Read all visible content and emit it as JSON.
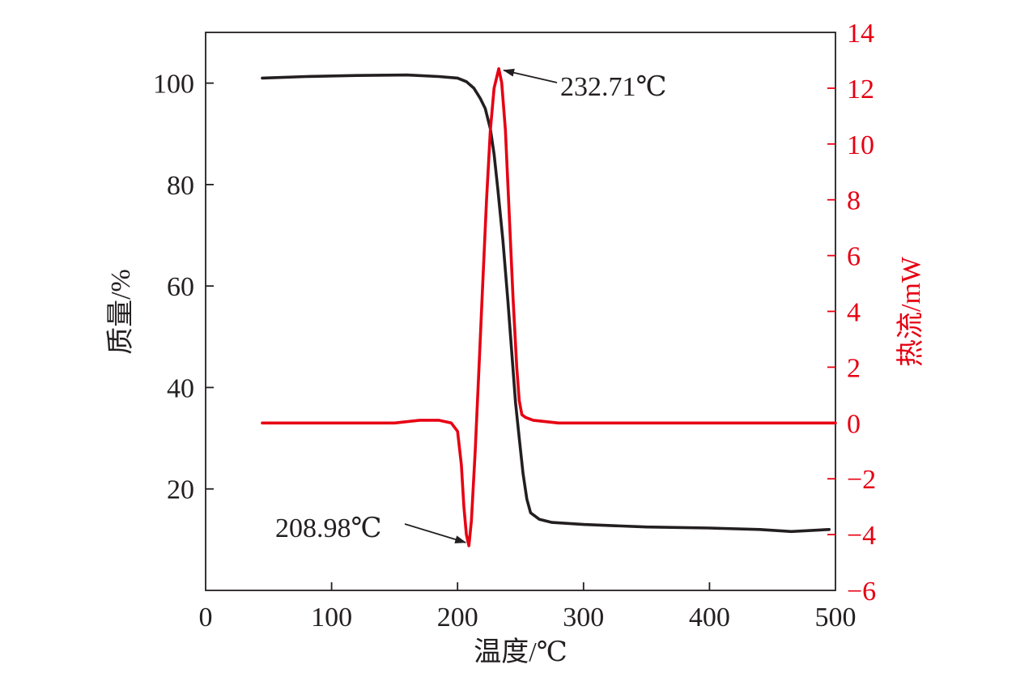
{
  "chart_data": {
    "type": "line",
    "title": "",
    "xlabel": "温度/℃",
    "ylabel_left": "质量/%",
    "ylabel_right": "热流/mW",
    "xlim": [
      0,
      500
    ],
    "ylim_left": [
      0,
      110
    ],
    "ylim_right": [
      -6,
      14
    ],
    "x_ticks": [
      0,
      100,
      200,
      300,
      400,
      500
    ],
    "x_tick_labels": [
      "0",
      "100",
      "200",
      "300",
      "400",
      "500"
    ],
    "y_left_ticks": [
      20,
      40,
      60,
      80,
      100
    ],
    "y_left_tick_labels": [
      "20",
      "40",
      "60",
      "80",
      "100"
    ],
    "y_right_ticks": [
      -6,
      -4,
      -2,
      0,
      2,
      4,
      6,
      8,
      10,
      12,
      14
    ],
    "y_right_tick_labels": [
      "−6",
      "−4",
      "−2",
      "0",
      "2",
      "4",
      "6",
      "8",
      "10",
      "12",
      "14"
    ],
    "grid": false,
    "colors": {
      "mass": "#231f20",
      "heat": "#e60012"
    },
    "series": [
      {
        "axis": "left",
        "x": [
          45,
          80,
          120,
          160,
          185,
          200,
          207,
          213,
          218,
          222,
          226,
          229,
          232,
          236,
          240,
          243,
          246,
          249,
          252,
          255,
          258,
          265,
          275,
          300,
          350,
          400,
          440,
          465,
          495
        ],
        "y": [
          101.0,
          101.3,
          101.5,
          101.6,
          101.3,
          101.0,
          100.3,
          99.0,
          97.0,
          95.0,
          91.0,
          86.0,
          79.0,
          69.0,
          57.0,
          47.0,
          37.0,
          30.0,
          23.0,
          18.0,
          15.3,
          14.0,
          13.4,
          13.0,
          12.5,
          12.3,
          12.0,
          11.6,
          12.0
        ]
      },
      {
        "axis": "right",
        "x": [
          45,
          100,
          150,
          170,
          185,
          195,
          200,
          203,
          205,
          207,
          208.98,
          211,
          214,
          217,
          220,
          223,
          226,
          229,
          232.71,
          235,
          238,
          241,
          244,
          247,
          249,
          251,
          254,
          260,
          280,
          300,
          350,
          400,
          450,
          500
        ],
        "y": [
          0.0,
          0.0,
          0.0,
          0.1,
          0.1,
          0.0,
          -0.3,
          -1.5,
          -3.0,
          -4.0,
          -4.4,
          -3.5,
          -1.0,
          2.0,
          5.0,
          8.0,
          10.5,
          12.0,
          12.7,
          12.2,
          10.5,
          7.5,
          4.5,
          2.0,
          0.8,
          0.3,
          0.2,
          0.1,
          0.0,
          0.0,
          0.0,
          0.0,
          0.0,
          0.0
        ]
      }
    ],
    "annotations": [
      {
        "text": "232.71℃",
        "x": 232.71,
        "y": 12.7,
        "axis": "right"
      },
      {
        "text": "208.98℃",
        "x": 208.98,
        "y": -4.4,
        "axis": "right"
      }
    ]
  }
}
